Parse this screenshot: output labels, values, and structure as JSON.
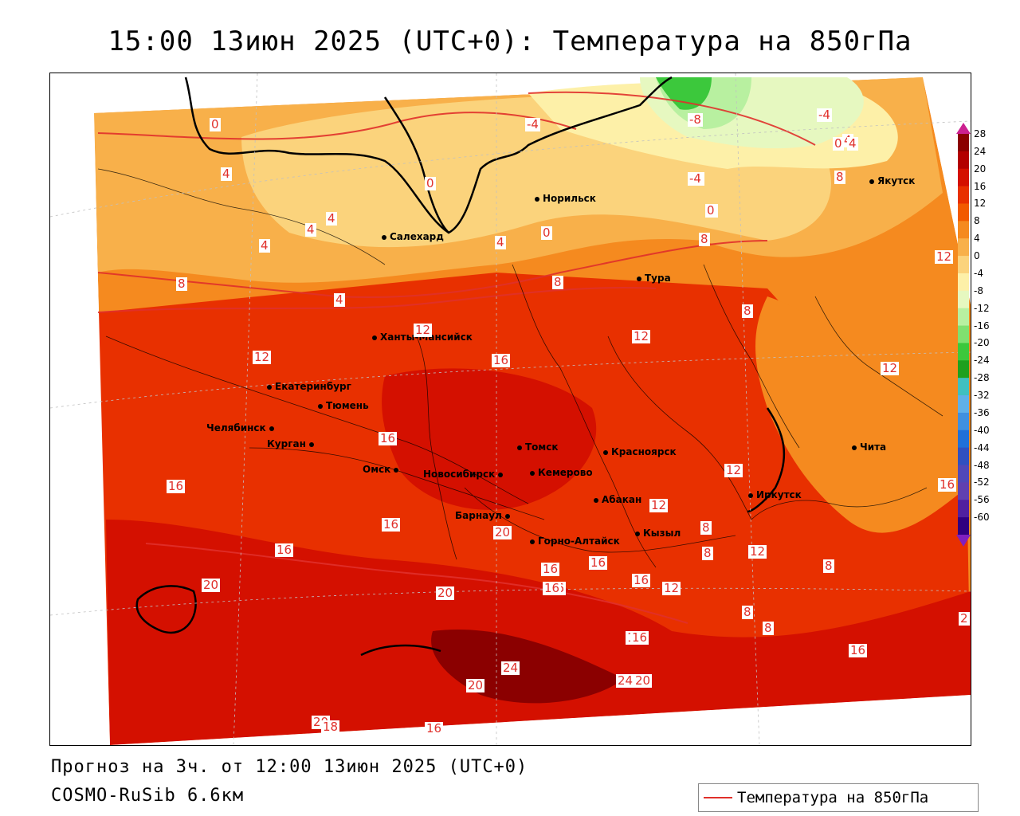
{
  "title": "15:00 13июн 2025 (UTC+0): Температура на 850гПа",
  "footer": {
    "forecast": "Прогноз на 3ч. от 12:00 13июн 2025 (UTC+0)",
    "model": "COSMO-RuSib 6.6км"
  },
  "legend": {
    "label": "Температура на 850гПа",
    "color": "#e0302b"
  },
  "colorbar": {
    "ticks": [
      "28",
      "24",
      "20",
      "16",
      "12",
      "8",
      "4",
      "0",
      "-4",
      "-8",
      "-12",
      "-16",
      "-20",
      "-24",
      "-28",
      "-32",
      "-36",
      "-40",
      "-44",
      "-48",
      "-52",
      "-56",
      "-60"
    ],
    "colors": [
      "#8b0000",
      "#b30000",
      "#d41000",
      "#e83000",
      "#f25a00",
      "#f58a1f",
      "#f8b04a",
      "#fbd37c",
      "#fdf0a8",
      "#e6f8c0",
      "#b8f0a0",
      "#80e070",
      "#3cc83c",
      "#1ea01e",
      "#40c0c0",
      "#60b0e8",
      "#4090e0",
      "#2070d8",
      "#3050c0",
      "#5048b8",
      "#6040b0",
      "#5020a0",
      "#300080"
    ],
    "top_arrow_color": "#cc2090",
    "bottom_arrow_color": "#8020c0"
  },
  "cities": [
    {
      "name": "Якутск"
    },
    {
      "name": "Норильск"
    },
    {
      "name": "Салехард"
    },
    {
      "name": "Тура"
    },
    {
      "name": "Ханты-Мансийск"
    },
    {
      "name": "Екатеринбург"
    },
    {
      "name": "Тюмень"
    },
    {
      "name": "Челябинск"
    },
    {
      "name": "Курган"
    },
    {
      "name": "Омск"
    },
    {
      "name": "Новосибирск"
    },
    {
      "name": "Томск"
    },
    {
      "name": "Кемерово"
    },
    {
      "name": "Красноярск"
    },
    {
      "name": "Барнаул"
    },
    {
      "name": "Абакан"
    },
    {
      "name": "Горно-Алтайск"
    },
    {
      "name": "Кызыл"
    },
    {
      "name": "Иркутск"
    },
    {
      "name": "Чита"
    }
  ],
  "contour_labels": [
    "0",
    "4",
    "4",
    "4",
    "4",
    "4",
    "0",
    "-4",
    "0",
    "-4",
    "-8",
    "-4",
    "4",
    "8",
    "8",
    "8",
    "4",
    "12",
    "12",
    "12",
    "16",
    "16",
    "16",
    "16",
    "16",
    "20",
    "20",
    "20",
    "24",
    "24",
    "20",
    "12",
    "12",
    "12",
    "16",
    "8",
    "12",
    "8",
    "8",
    "8",
    "8",
    "16",
    "16",
    "16",
    "16",
    "16",
    "12",
    "12",
    "8",
    "0",
    "4",
    "-4",
    "0",
    "4",
    "8",
    "12",
    "2",
    "16",
    "20",
    "16",
    "16",
    "16",
    "18",
    "20"
  ]
}
